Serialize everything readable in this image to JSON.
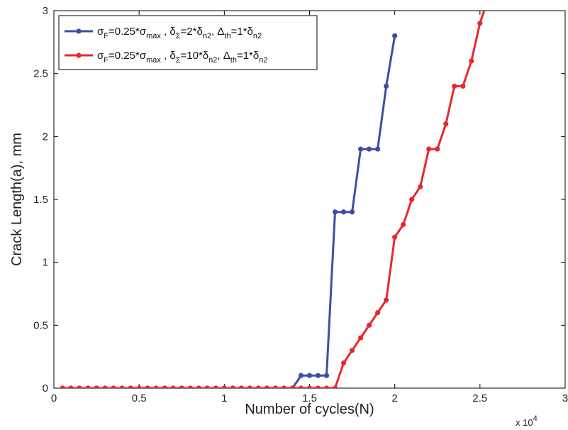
{
  "chart_data": {
    "type": "line",
    "xlabel": "Number of cycles(N)",
    "ylabel": "Crack Length(a), mm",
    "x_exponent_label": "x 10",
    "x_exponent_power": "4",
    "xlim": [
      0,
      3
    ],
    "ylim": [
      0,
      3
    ],
    "xticks": [
      "0",
      "0.5",
      "1",
      "1.5",
      "2",
      "2.5",
      "3"
    ],
    "yticks": [
      "0",
      "0.5",
      "1",
      "1.5",
      "2",
      "2.5",
      "3"
    ],
    "x_tick_values": [
      0,
      0.5,
      1,
      1.5,
      2,
      2.5,
      3
    ],
    "y_tick_values": [
      0,
      0.5,
      1,
      1.5,
      2,
      2.5,
      3
    ],
    "grid": false,
    "legend_position": "top-left",
    "series": [
      {
        "color": "#3a4fa3",
        "legend": {
          "segments": [
            {
              "t": "σ"
            },
            {
              "t": "F",
              "sub": true
            },
            {
              "t": "=0.25*σ"
            },
            {
              "t": "max",
              "sub": true
            },
            {
              "t": " , δ"
            },
            {
              "t": "Σ",
              "sub": true
            },
            {
              "t": "=2*δ"
            },
            {
              "t": "n2",
              "sub": true
            },
            {
              "t": ", Δ"
            },
            {
              "t": "th",
              "sub": true
            },
            {
              "t": "=1*δ"
            },
            {
              "t": "n2",
              "sub": true
            }
          ]
        },
        "x": [
          0.05,
          0.1,
          0.15,
          0.2,
          0.25,
          0.3,
          0.35,
          0.4,
          0.45,
          0.5,
          0.55,
          0.6,
          0.65,
          0.7,
          0.75,
          0.8,
          0.85,
          0.9,
          0.95,
          1.0,
          1.05,
          1.1,
          1.15,
          1.2,
          1.25,
          1.3,
          1.35,
          1.4,
          1.45,
          1.5,
          1.55,
          1.6,
          1.65,
          1.7,
          1.75,
          1.8,
          1.85,
          1.9,
          1.95,
          2.0
        ],
        "y": [
          0,
          0,
          0,
          0,
          0,
          0,
          0,
          0,
          0,
          0,
          0,
          0,
          0,
          0,
          0,
          0,
          0,
          0,
          0,
          0,
          0,
          0,
          0,
          0,
          0,
          0,
          0,
          0,
          0.1,
          0.1,
          0.1,
          0.1,
          1.4,
          1.4,
          1.4,
          1.9,
          1.9,
          1.9,
          2.4,
          2.8
        ]
      },
      {
        "color": "#e8282b",
        "legend": {
          "segments": [
            {
              "t": "σ"
            },
            {
              "t": "F",
              "sub": true
            },
            {
              "t": "=0.25*σ"
            },
            {
              "t": "max",
              "sub": true
            },
            {
              "t": " , δ"
            },
            {
              "t": "Σ",
              "sub": true
            },
            {
              "t": "=10*δ"
            },
            {
              "t": "n2",
              "sub": true
            },
            {
              "t": ", Δ"
            },
            {
              "t": "th",
              "sub": true
            },
            {
              "t": "=1*δ"
            },
            {
              "t": "n2",
              "sub": true
            }
          ]
        },
        "x": [
          0.05,
          0.1,
          0.15,
          0.2,
          0.25,
          0.3,
          0.35,
          0.4,
          0.45,
          0.5,
          0.55,
          0.6,
          0.65,
          0.7,
          0.75,
          0.8,
          0.85,
          0.9,
          0.95,
          1.0,
          1.05,
          1.1,
          1.15,
          1.2,
          1.25,
          1.3,
          1.35,
          1.4,
          1.45,
          1.5,
          1.55,
          1.6,
          1.65,
          1.7,
          1.75,
          1.8,
          1.85,
          1.9,
          1.95,
          2.0,
          2.05,
          2.1,
          2.15,
          2.2,
          2.25,
          2.3,
          2.35,
          2.4,
          2.45,
          2.5,
          2.55
        ],
        "y": [
          0,
          0,
          0,
          0,
          0,
          0,
          0,
          0,
          0,
          0,
          0,
          0,
          0,
          0,
          0,
          0,
          0,
          0,
          0,
          0,
          0,
          0,
          0,
          0,
          0,
          0,
          0,
          0,
          0,
          0,
          0,
          0,
          0,
          0.2,
          0.3,
          0.4,
          0.5,
          0.6,
          0.7,
          1.2,
          1.3,
          1.5,
          1.6,
          1.9,
          1.9,
          2.1,
          2.4,
          2.4,
          2.6,
          2.9,
          3.1
        ]
      }
    ]
  }
}
